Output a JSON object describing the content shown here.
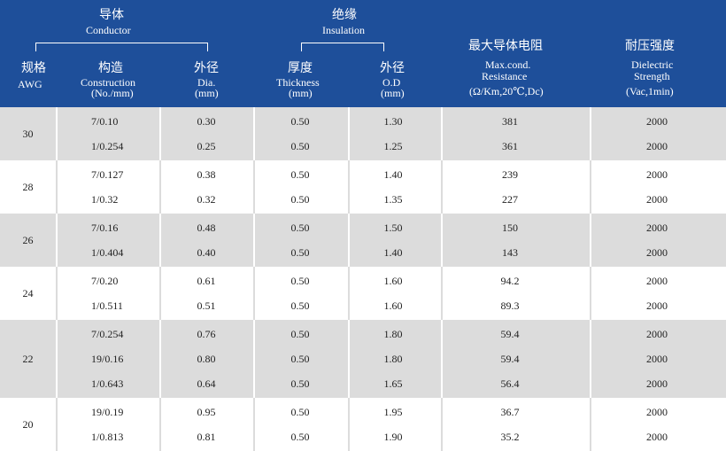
{
  "header": {
    "conductor_zh": "导体",
    "conductor_en": "Conductor",
    "insulation_zh": "绝缘",
    "insulation_en": "Insulation",
    "awg_zh": "规格",
    "awg_en": "AWG",
    "construction_zh": "构造",
    "construction_en1": "Construction",
    "construction_en2": "(No./mm)",
    "dia_zh": "外径",
    "dia_en1": "Dia.",
    "dia_en2": "(mm)",
    "thickness_zh": "厚度",
    "thickness_en1": "Thickness",
    "thickness_en2": "(mm)",
    "od_zh": "外径",
    "od_en1": "O.D",
    "od_en2": "(mm)",
    "resistance_zh": "最大导体电阻",
    "resistance_en1": "Max.cond.",
    "resistance_en2": "Resistance",
    "resistance_en3": "(Ω/Km,20℃,Dc)",
    "dielectric_zh": "耐压强度",
    "dielectric_en1": "Dielectric",
    "dielectric_en2": "Strength",
    "dielectric_en3": "(Vac,1min)"
  },
  "groups": [
    {
      "awg": "30",
      "rows": [
        [
          "7/0.10",
          "0.30",
          "0.50",
          "1.30",
          "381",
          "2000"
        ],
        [
          "1/0.254",
          "0.25",
          "0.50",
          "1.25",
          "361",
          "2000"
        ]
      ]
    },
    {
      "awg": "28",
      "rows": [
        [
          "7/0.127",
          "0.38",
          "0.50",
          "1.40",
          "239",
          "2000"
        ],
        [
          "1/0.32",
          "0.32",
          "0.50",
          "1.35",
          "227",
          "2000"
        ]
      ]
    },
    {
      "awg": "26",
      "rows": [
        [
          "7/0.16",
          "0.48",
          "0.50",
          "1.50",
          "150",
          "2000"
        ],
        [
          "1/0.404",
          "0.40",
          "0.50",
          "1.40",
          "143",
          "2000"
        ]
      ]
    },
    {
      "awg": "24",
      "rows": [
        [
          "7/0.20",
          "0.61",
          "0.50",
          "1.60",
          "94.2",
          "2000"
        ],
        [
          "1/0.511",
          "0.51",
          "0.50",
          "1.60",
          "89.3",
          "2000"
        ]
      ]
    },
    {
      "awg": "22",
      "rows": [
        [
          "7/0.254",
          "0.76",
          "0.50",
          "1.80",
          "59.4",
          "2000"
        ],
        [
          "19/0.16",
          "0.80",
          "0.50",
          "1.80",
          "59.4",
          "2000"
        ],
        [
          "1/0.643",
          "0.64",
          "0.50",
          "1.65",
          "56.4",
          "2000"
        ]
      ]
    },
    {
      "awg": "20",
      "rows": [
        [
          "19/0.19",
          "0.95",
          "0.50",
          "1.95",
          "36.7",
          "2000"
        ],
        [
          "1/0.813",
          "0.81",
          "0.50",
          "1.90",
          "35.2",
          "2000"
        ]
      ]
    }
  ]
}
